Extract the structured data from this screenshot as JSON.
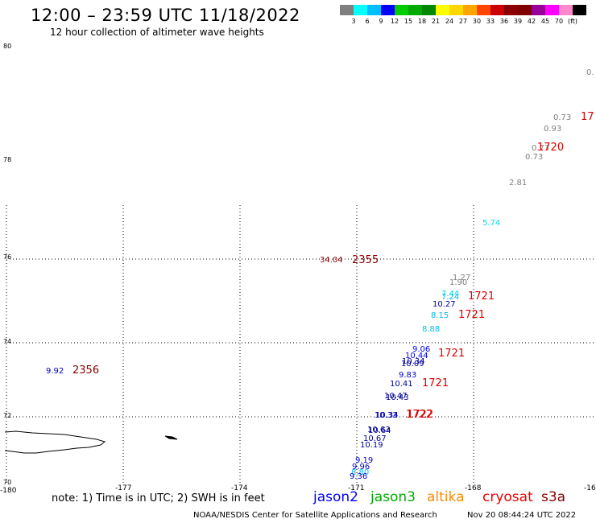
{
  "header": {
    "title": "12:00 – 23:59 UTC 11/18/2022",
    "subtitle": "12 hour collection of altimeter wave heights"
  },
  "scale": {
    "colors": [
      "#7f7f7f",
      "#00ffff",
      "#00bfff",
      "#0000ff",
      "#00cc00",
      "#00aa00",
      "#008800",
      "#ffff00",
      "#ffd700",
      "#ffa500",
      "#ff4500",
      "#cc0000",
      "#8b0000",
      "#800000",
      "#990099",
      "#ff00ff",
      "#ff88cc",
      "#000000"
    ],
    "labels": [
      "3",
      "6",
      "9",
      "12",
      "15",
      "18",
      "21",
      "24",
      "27",
      "30",
      "33",
      "36",
      "39",
      "42",
      "45",
      "70",
      "(ft)"
    ]
  },
  "axes": {
    "lon_labels": [
      "-180",
      "-177",
      "-174",
      "-171",
      "-168",
      "-16"
    ],
    "lat_labels": [
      "80",
      "78",
      "76",
      "74",
      "72",
      "70"
    ]
  },
  "observations": [
    {
      "text": "0.",
      "color": "#7f7f7f",
      "sat": "s3a"
    },
    {
      "text": "0.73",
      "color": "#7f7f7f",
      "sat": "s3a"
    },
    {
      "text": "17",
      "color": "#dd0000",
      "sat": "time"
    },
    {
      "text": "0.93",
      "color": "#7f7f7f",
      "sat": "s3a"
    },
    {
      "text": "0.73",
      "color": "#7f7f7f",
      "sat": "s3a"
    },
    {
      "text": "1720",
      "color": "#dd0000",
      "sat": "time"
    },
    {
      "text": "0.73",
      "color": "#7f7f7f",
      "sat": "s3a"
    },
    {
      "text": "2.81",
      "color": "#7f7f7f",
      "sat": "s3a"
    },
    {
      "text": "5.74",
      "color": "#00dddd",
      "sat": "s3a"
    },
    {
      "text": "34.04",
      "color": "#880000",
      "sat": "altika"
    },
    {
      "text": "2355",
      "color": "#880000",
      "sat": "time"
    },
    {
      "text": "1.27",
      "color": "#7f7f7f",
      "sat": "s3a"
    },
    {
      "text": "1.90",
      "color": "#7f7f7f",
      "sat": "s3a"
    },
    {
      "text": "7.44",
      "color": "#00dddd",
      "sat": "s3a"
    },
    {
      "text": "7.24",
      "color": "#00bbee",
      "sat": "s3a"
    },
    {
      "text": "1721",
      "color": "#dd0000",
      "sat": "time"
    },
    {
      "text": "10.27",
      "color": "#000099",
      "sat": "s3a"
    },
    {
      "text": "8.15",
      "color": "#00bbee",
      "sat": "s3a"
    },
    {
      "text": "1721",
      "color": "#dd0000",
      "sat": "time"
    },
    {
      "text": "8.88",
      "color": "#00bbee",
      "sat": "s3a"
    },
    {
      "text": "9.06",
      "color": "#0000ff",
      "sat": "s3a"
    },
    {
      "text": "10.44",
      "color": "#0000ff",
      "sat": "s3a"
    },
    {
      "text": "1721",
      "color": "#dd0000",
      "sat": "time"
    },
    {
      "text": "10.34",
      "color": "#000099",
      "sat": "s3a"
    },
    {
      "text": "10.09",
      "color": "#000099",
      "sat": "s3a"
    },
    {
      "text": "9.92",
      "color": "#0000cc",
      "sat": "altika"
    },
    {
      "text": "2356",
      "color": "#880000",
      "sat": "time"
    },
    {
      "text": "9.83",
      "color": "#0000cc",
      "sat": "s3a"
    },
    {
      "text": "10.41",
      "color": "#000099",
      "sat": "s3a"
    },
    {
      "text": "1721",
      "color": "#dd0000",
      "sat": "time"
    },
    {
      "text": "10.47",
      "color": "#000099",
      "sat": "s3a"
    },
    {
      "text": "10.43",
      "color": "#000099",
      "sat": "s3a"
    },
    {
      "text": "10.33",
      "color": "#000099",
      "sat": "s3a"
    },
    {
      "text": "10.34",
      "color": "#0000cc",
      "sat": "s3a"
    },
    {
      "text": "1722",
      "color": "#dd0000",
      "sat": "time"
    },
    {
      "text": "1722",
      "color": "#dd0000",
      "sat": "time"
    },
    {
      "text": "10.63",
      "color": "#000099",
      "sat": "s3a"
    },
    {
      "text": "10.64",
      "color": "#000099",
      "sat": "s3a"
    },
    {
      "text": "10.67",
      "color": "#000099",
      "sat": "s3a"
    },
    {
      "text": "10.19",
      "color": "#000099",
      "sat": "s3a"
    },
    {
      "text": "9.19",
      "color": "#0000cc",
      "sat": "s3a"
    },
    {
      "text": "9.96",
      "color": "#0000cc",
      "sat": "s3a"
    },
    {
      "text": "8.80",
      "color": "#00bbee",
      "sat": "s3a"
    },
    {
      "text": "9.36",
      "color": "#0000cc",
      "sat": "s3a"
    }
  ],
  "footer": {
    "note": "note: 1) Time is in UTC; 2) SWH is in feet",
    "satellites": [
      {
        "name": "jason2",
        "color": "#0000ff"
      },
      {
        "name": "jason3",
        "color": "#00aa00"
      },
      {
        "name": "altika",
        "color": "#ff8800"
      },
      {
        "name": "cryosat",
        "color": "#ee0000"
      },
      {
        "name": "s3a",
        "color": "#880000"
      }
    ],
    "credit": "NOAA/NESDIS Center for Satellite Applications and Research",
    "timestamp": "Nov 20 08:44:24 UTC 2022"
  }
}
